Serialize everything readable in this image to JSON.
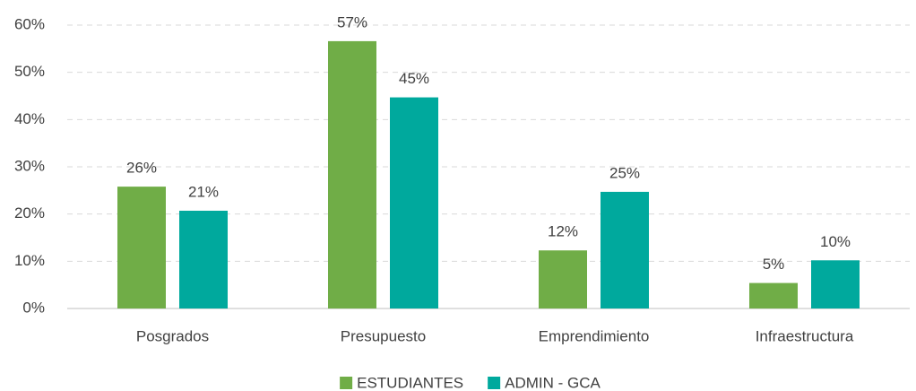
{
  "chart_data": {
    "type": "bar",
    "categories": [
      "Posgrados",
      "Presupuesto",
      "Emprendimiento",
      "Infraestructura"
    ],
    "series": [
      {
        "name": "ESTUDIANTES",
        "color": "#70ad47",
        "values": [
          25.8,
          56.6,
          12.3,
          5.4
        ],
        "value_labels": [
          "26%",
          "57%",
          "12%",
          "5%"
        ]
      },
      {
        "name": "ADMIN - GCA",
        "color": "#00a99d",
        "values": [
          20.7,
          44.7,
          24.7,
          10.2
        ],
        "value_labels": [
          "21%",
          "45%",
          "25%",
          "10%"
        ]
      }
    ],
    "ylim": [
      0,
      60
    ],
    "yticks": [
      {
        "value": 0,
        "label": "0%"
      },
      {
        "value": 10,
        "label": "10%"
      },
      {
        "value": 20,
        "label": "20%"
      },
      {
        "value": 30,
        "label": "30%"
      },
      {
        "value": 40,
        "label": "40%"
      },
      {
        "value": 50,
        "label": "50%"
      },
      {
        "value": 60,
        "label": "60%"
      }
    ],
    "grid": true,
    "legend": "bottom"
  }
}
